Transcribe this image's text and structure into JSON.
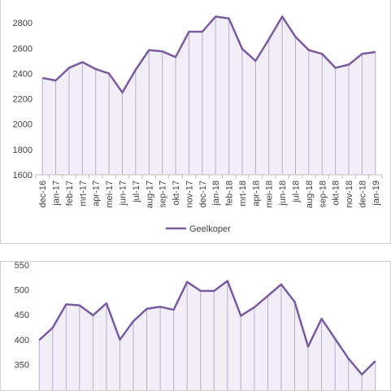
{
  "colors": {
    "series": "#7b5b9e",
    "fill": "#f1eef7",
    "drop": "#b9aad0",
    "axis": "#bfbfbf"
  },
  "chart_data": [
    {
      "type": "area",
      "categories": [
        "dec-16",
        "jan-17",
        "feb-17",
        "mrt-17",
        "apr-17",
        "mei-17",
        "jun-17",
        "jul-17",
        "aug-17",
        "sep-17",
        "okt-17",
        "nov-17",
        "dec-17",
        "jan-18",
        "feb-18",
        "mrt-18",
        "apr-18",
        "mei-18",
        "jun-18",
        "jul-18",
        "aug-18",
        "sep-18",
        "okt-18",
        "nov-18",
        "dec-18",
        "jan-19"
      ],
      "series": [
        {
          "name": "Geelkoper",
          "values": [
            2365,
            2345,
            2445,
            2490,
            2435,
            2400,
            2250,
            2430,
            2585,
            2575,
            2530,
            2730,
            2730,
            2850,
            2835,
            2595,
            2500,
            2670,
            2850,
            2690,
            2585,
            2555,
            2445,
            2470,
            2555,
            2570
          ]
        }
      ],
      "ylim": [
        1600,
        3000
      ],
      "yticks": [
        "1600",
        "1800",
        "2000",
        "2200",
        "2400",
        "2600",
        "2800"
      ],
      "grid": false,
      "legend": "bottom"
    },
    {
      "type": "area",
      "series": [
        {
          "values": [
            399,
            424,
            471,
            469,
            449,
            473,
            400,
            437,
            462,
            466,
            460,
            516,
            498,
            498,
            518,
            448,
            465,
            488,
            511,
            476,
            386,
            442,
            402,
            362,
            330,
            357
          ]
        }
      ],
      "ylim": [
        300,
        550
      ],
      "yticks": [
        "350",
        "400",
        "450",
        "500",
        "550"
      ],
      "grid": false
    }
  ]
}
